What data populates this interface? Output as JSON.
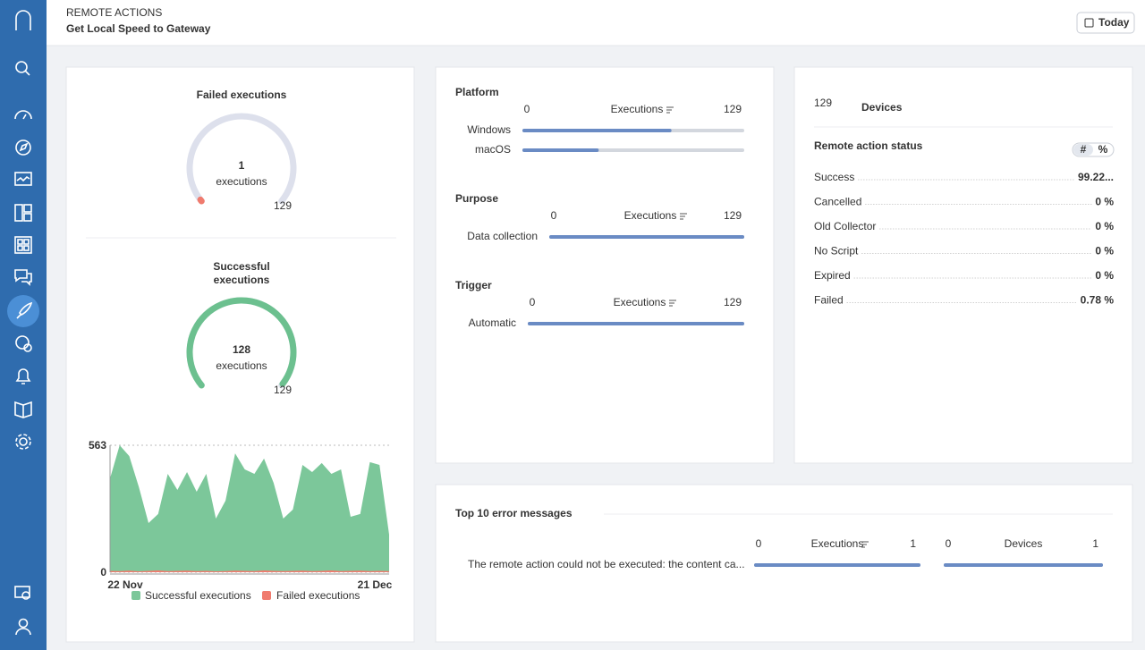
{
  "header": {
    "breadcrumb": "REMOTE ACTIONS",
    "title": "Get Local Speed to Gateway",
    "date_button": "Today"
  },
  "failed_gauge": {
    "title": "Failed executions",
    "value": 1,
    "unit": "executions",
    "max": 129,
    "color": "#f07b6e"
  },
  "success_gauge": {
    "title": "Successful executions",
    "value": 128,
    "unit": "executions",
    "max": 129,
    "color": "#6cc08f"
  },
  "trend": {
    "ylim": [
      0,
      563
    ],
    "yticks": [
      0,
      563
    ],
    "x_labels": [
      "22 Nov",
      "21 Dec"
    ],
    "series": [
      {
        "name": "Successful executions",
        "color": "#7cc79a",
        "values": [
          416,
          563,
          515,
          377,
          218,
          258,
          436,
          365,
          444,
          357,
          436,
          238,
          317,
          527,
          456,
          436,
          504,
          396,
          238,
          278,
          476,
          444,
          484,
          436,
          456,
          246,
          258,
          488,
          476,
          167
        ]
      },
      {
        "name": "Failed executions",
        "color": "#f07b6e",
        "values": [
          6,
          5,
          7,
          4,
          6,
          8,
          5,
          6,
          7,
          5,
          6,
          4,
          5,
          7,
          6,
          5,
          8,
          6,
          5,
          6,
          7,
          5,
          6,
          8,
          5,
          6,
          7,
          5,
          6,
          5
        ]
      }
    ]
  },
  "breakdowns": [
    {
      "title": "Platform",
      "axis_min": 0,
      "axis_label": "Executions",
      "axis_max": 129,
      "rows": [
        {
          "label": "Windows",
          "value": 86
        },
        {
          "label": "macOS",
          "value": 43
        }
      ]
    },
    {
      "title": "Purpose",
      "axis_min": 0,
      "axis_label": "Executions",
      "axis_max": 129,
      "rows": [
        {
          "label": "Data collection",
          "value": 129
        }
      ]
    },
    {
      "title": "Trigger",
      "axis_min": 0,
      "axis_label": "Executions",
      "axis_max": 129,
      "rows": [
        {
          "label": "Automatic",
          "value": 129
        }
      ]
    }
  ],
  "devices": {
    "count": "129",
    "unit": "Devices",
    "status_title": "Remote action status",
    "toggle": [
      "#",
      "%"
    ],
    "rows": [
      {
        "label": "Success",
        "value": "99.22..."
      },
      {
        "label": "Cancelled",
        "value": "0 %"
      },
      {
        "label": "Old Collector",
        "value": "0 %"
      },
      {
        "label": "No Script",
        "value": "0 %"
      },
      {
        "label": "Expired",
        "value": "0 %"
      },
      {
        "label": "Failed",
        "value": "0.78 %"
      }
    ]
  },
  "errors": {
    "title": "Top 10 error messages",
    "columns": [
      {
        "axis_min": 0,
        "axis_label": "Executions",
        "axis_max": 1
      },
      {
        "axis_min": 0,
        "axis_label": "Devices",
        "axis_max": 1
      }
    ],
    "rows": [
      {
        "message": "The remote action could not be executed: the content ca...",
        "values": [
          1,
          1
        ]
      }
    ]
  }
}
